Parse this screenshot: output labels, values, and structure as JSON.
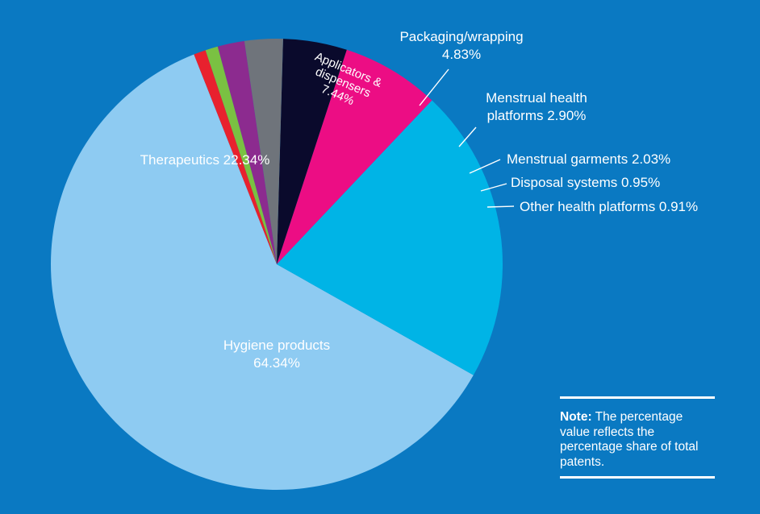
{
  "chart_data": {
    "type": "pie",
    "slices": [
      {
        "label": "Hygiene products",
        "value": 64.34,
        "value_text": "64.34%",
        "color": "#8ecbf2"
      },
      {
        "label": "Therapeutics",
        "value": 22.34,
        "value_text": "22.34%",
        "color": "#00b4e6"
      },
      {
        "label": "Applicators & dispensers",
        "value": 7.44,
        "value_text": "7.44%",
        "color": "#ec0d84"
      },
      {
        "label": "Packaging/wrapping",
        "value": 4.83,
        "value_text": "4.83%",
        "color": "#0a0a2c"
      },
      {
        "label": "Menstrual health platforms",
        "value": 2.9,
        "value_text": "2.90%",
        "color": "#6f747b"
      },
      {
        "label": "Menstrual garments",
        "value": 2.03,
        "value_text": "2.03%",
        "color": "#8c2b8f"
      },
      {
        "label": "Disposal systems",
        "value": 0.95,
        "value_text": "0.95%",
        "color": "#7ac142"
      },
      {
        "label": "Other health platforms",
        "value": 0.91,
        "value_text": "0.91%",
        "color": "#e8212e"
      }
    ],
    "label_text": {
      "hygiene": [
        "Hygiene products",
        "64.34%"
      ],
      "therapeutics": [
        "Therapeutics 22.34%"
      ],
      "applicators": [
        "Applicators &",
        "dispensers",
        "7.44%"
      ],
      "packaging": [
        "Packaging/wrapping",
        "4.83%"
      ],
      "menstrual_platforms": [
        "Menstrual health",
        "platforms 2.90%"
      ],
      "garments": [
        "Menstrual garments 2.03%"
      ],
      "disposal": [
        "Disposal systems 0.95%"
      ],
      "other": [
        "Other health platforms 0.91%"
      ]
    }
  },
  "note": {
    "label": "Note:",
    "text": " The percentage value reflects the percentage share of total patents."
  }
}
